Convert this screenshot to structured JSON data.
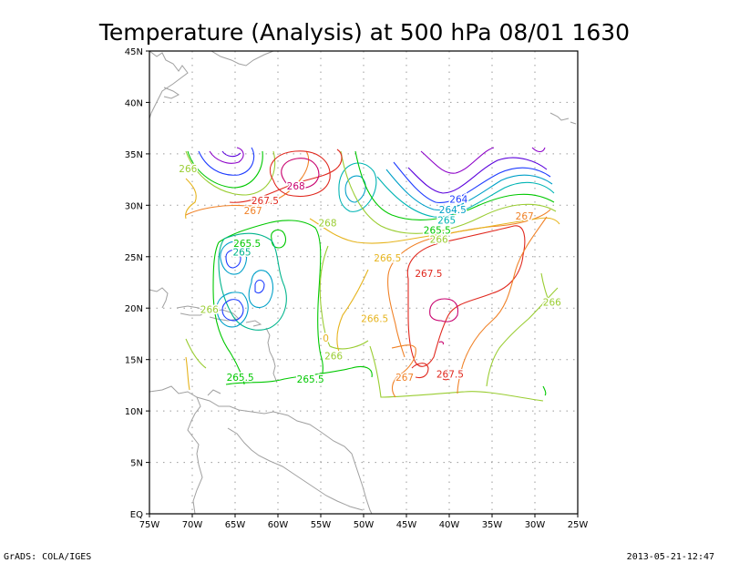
{
  "title": "Temperature (Analysis) at 500 hPa 08/01 1630",
  "footer": {
    "left": "GrADS: COLA/IGES",
    "right": "2013-05-21-12:47"
  },
  "axes": {
    "lon_labels": [
      "75W",
      "70W",
      "65W",
      "60W",
      "55W",
      "50W",
      "45W",
      "40W",
      "35W",
      "30W",
      "25W"
    ],
    "lat_labels": [
      "EQ",
      "5N",
      "10N",
      "15N",
      "20N",
      "25N",
      "30N",
      "35N",
      "40N",
      "45N"
    ],
    "lon_range": [
      -75,
      -25
    ],
    "lat_range": [
      0,
      45
    ],
    "grid": "dotted"
  },
  "contour_labels": [
    {
      "text": "266",
      "lon": -70.5,
      "lat": 33.5,
      "color": "#9acd32"
    },
    {
      "text": "268",
      "lon": -57.9,
      "lat": 31.8,
      "color": "#c8006e"
    },
    {
      "text": "267.5",
      "lon": -61.5,
      "lat": 30.4,
      "color": "#e0281e"
    },
    {
      "text": "267",
      "lon": -62.9,
      "lat": 29.4,
      "color": "#f08228"
    },
    {
      "text": "268",
      "lon": -54.2,
      "lat": 28.2,
      "color": "#9acd32"
    },
    {
      "text": "265.5",
      "lon": -63.6,
      "lat": 26.2,
      "color": "#00c800"
    },
    {
      "text": "265",
      "lon": -64.2,
      "lat": 25.4,
      "color": "#00b48c"
    },
    {
      "text": "264",
      "lon": -38.9,
      "lat": 30.5,
      "color": "#1e3cff"
    },
    {
      "text": "264.5",
      "lon": -39.6,
      "lat": 29.5,
      "color": "#00a0c8"
    },
    {
      "text": "265",
      "lon": -40.3,
      "lat": 28.5,
      "color": "#00b4b4"
    },
    {
      "text": "265.5",
      "lon": -41.4,
      "lat": 27.5,
      "color": "#00c800"
    },
    {
      "text": "266",
      "lon": -41.2,
      "lat": 26.6,
      "color": "#9acd32"
    },
    {
      "text": "267",
      "lon": -31.2,
      "lat": 28.9,
      "color": "#f08228"
    },
    {
      "text": "266.5",
      "lon": -47.2,
      "lat": 24.8,
      "color": "#e6b41e"
    },
    {
      "text": "267.5",
      "lon": -42.4,
      "lat": 23.3,
      "color": "#e0281e"
    },
    {
      "text": "266",
      "lon": -68.0,
      "lat": 19.8,
      "color": "#9acd32"
    },
    {
      "text": "266.5",
      "lon": -48.7,
      "lat": 18.9,
      "color": "#e6b41e"
    },
    {
      "text": "266",
      "lon": -28.0,
      "lat": 20.5,
      "color": "#9acd32"
    },
    {
      "text": "0",
      "lon": -54.4,
      "lat": 17.0,
      "color": "#e6b41e"
    },
    {
      "text": "266",
      "lon": -53.5,
      "lat": 15.3,
      "color": "#9acd32"
    },
    {
      "text": "265.5",
      "lon": -64.4,
      "lat": 13.2,
      "color": "#00c800"
    },
    {
      "text": "265.5",
      "lon": -56.2,
      "lat": 13.0,
      "color": "#00c800"
    },
    {
      "text": "267",
      "lon": -45.2,
      "lat": 13.2,
      "color": "#f08228"
    },
    {
      "text": "267.5",
      "lon": -39.9,
      "lat": 13.5,
      "color": "#e0281e"
    }
  ]
}
